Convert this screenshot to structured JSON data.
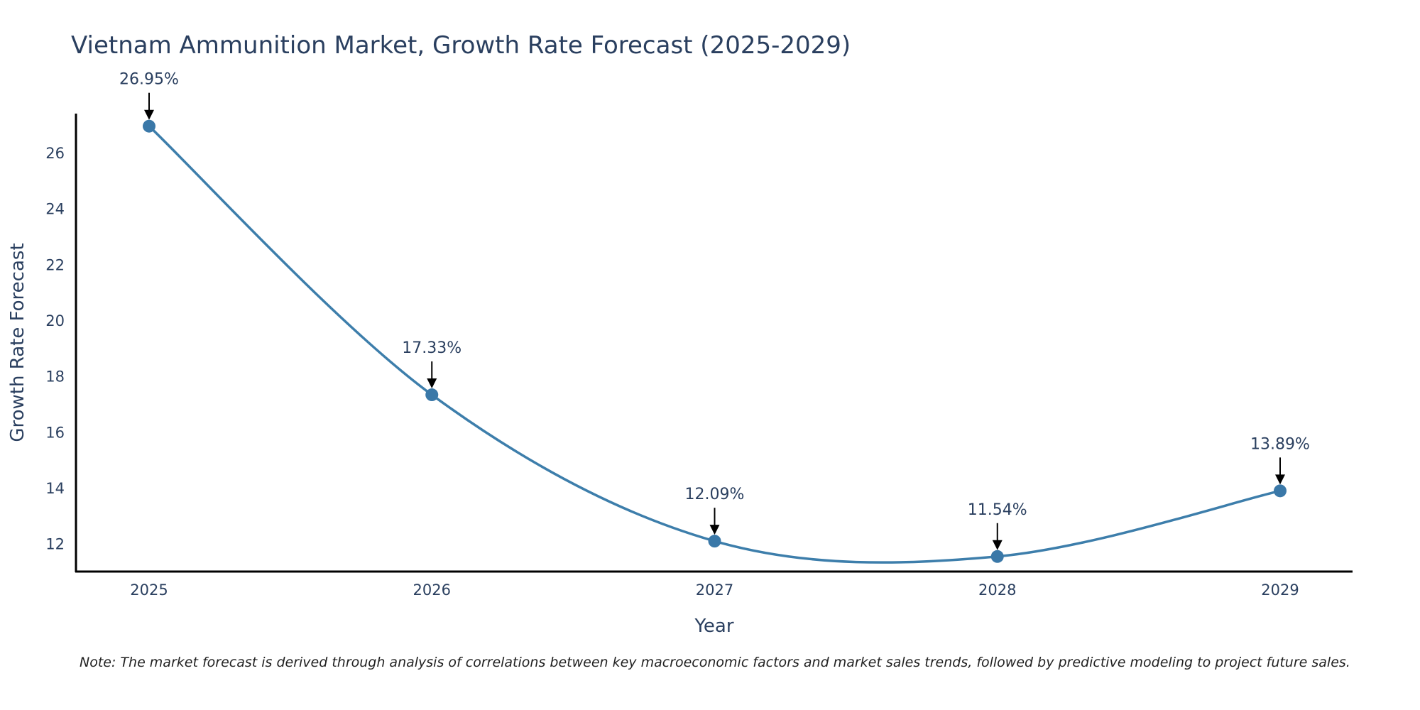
{
  "chart_data": {
    "type": "line",
    "title": "Vietnam Ammunition Market, Growth Rate Forecast (2025-2029)",
    "xlabel": "Year",
    "ylabel": "Growth Rate Forecast",
    "categories": [
      "2025",
      "2026",
      "2027",
      "2028",
      "2029"
    ],
    "values": [
      26.95,
      17.33,
      12.09,
      11.54,
      13.89
    ],
    "data_labels": [
      "26.95%",
      "17.33%",
      "12.09%",
      "11.54%",
      "13.89%"
    ],
    "y_ticks": [
      12,
      14,
      16,
      18,
      20,
      22,
      24,
      26
    ],
    "ylim": [
      11,
      27.4
    ],
    "grid": false,
    "legend": "none",
    "line_color": "#3d7eab",
    "marker_color": "#3a78a8"
  },
  "footnote": "Note: The market forecast is derived through analysis of correlations between key macroeconomic factors and market sales trends, followed by predictive modeling to project future sales."
}
